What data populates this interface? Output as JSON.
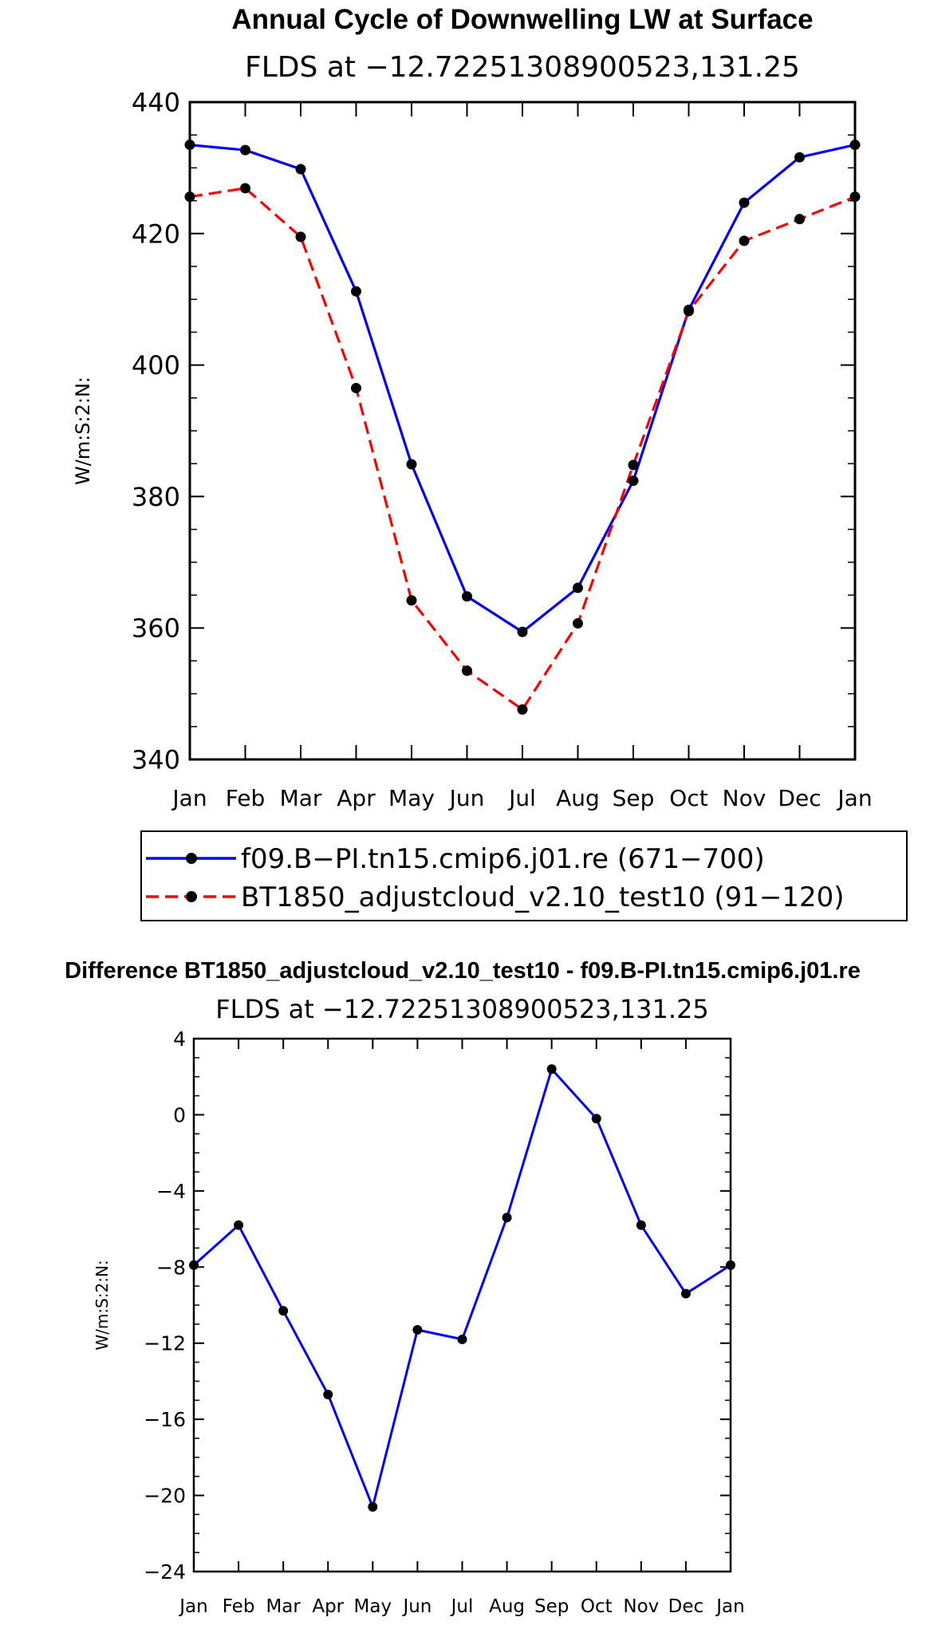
{
  "chart_data": [
    {
      "type": "line",
      "title": "Annual Cycle of Downwelling LW at Surface",
      "subtitle": "FLDS at −12.72251308900523,131.25",
      "xlabel": "",
      "ylabel": "W/m:S:2:N:",
      "categories": [
        "Jan",
        "Feb",
        "Mar",
        "Apr",
        "May",
        "Jun",
        "Jul",
        "Aug",
        "Sep",
        "Oct",
        "Nov",
        "Dec",
        "Jan"
      ],
      "ylim": [
        340,
        440
      ],
      "yticks": [
        340,
        360,
        380,
        400,
        420,
        440
      ],
      "ytick_labels": [
        "340",
        "360",
        "380",
        "400",
        "420",
        "440"
      ],
      "series": [
        {
          "name": "f09.B−PI.tn15.cmip6.j01.re (671−700)",
          "color": "#0000ff",
          "dash": "solid",
          "values": [
            433.5,
            432.7,
            429.8,
            411.2,
            384.9,
            364.8,
            359.4,
            366.1,
            382.4,
            408.4,
            424.7,
            431.6,
            433.5
          ]
        },
        {
          "name": "BT1850_adjustcloud_v2.10_test10 (91−120)",
          "color": "#ff0000",
          "dash": "dashed",
          "values": [
            425.6,
            426.9,
            419.5,
            396.5,
            364.2,
            353.5,
            347.6,
            360.7,
            384.8,
            408.2,
            418.9,
            422.2,
            425.6
          ]
        }
      ],
      "legend": {
        "placement": "below"
      }
    },
    {
      "type": "line",
      "title": "Difference BT1850_adjustcloud_v2.10_test10 - f09.B-PI.tn15.cmip6.j01.re",
      "subtitle": "FLDS at −12.72251308900523,131.25",
      "xlabel": "",
      "ylabel": "W/m:S:2:N:",
      "categories": [
        "Jan",
        "Feb",
        "Mar",
        "Apr",
        "May",
        "Jun",
        "Jul",
        "Aug",
        "Sep",
        "Oct",
        "Nov",
        "Dec",
        "Jan"
      ],
      "ylim": [
        -24,
        4
      ],
      "yticks": [
        -24,
        -20,
        -16,
        -12,
        -8,
        -4,
        0,
        4
      ],
      "ytick_labels": [
        "−24",
        "−20",
        "−16",
        "−12",
        "−8",
        "−4",
        "0",
        "4"
      ],
      "series": [
        {
          "name": "Difference",
          "color": "#0000ff",
          "dash": "solid",
          "values": [
            -7.9,
            -5.8,
            -10.3,
            -14.7,
            -20.6,
            -11.3,
            -11.8,
            -5.4,
            2.4,
            -0.2,
            -5.8,
            -9.4,
            -7.9
          ]
        }
      ]
    }
  ]
}
